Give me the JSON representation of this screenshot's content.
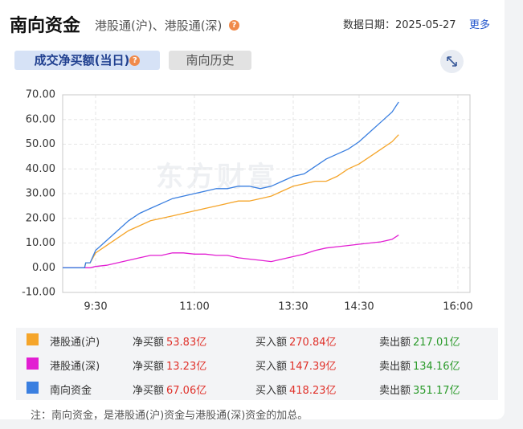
{
  "header": {
    "title": "南向资金",
    "subtitle": "港股通(沪)、港股通(深)",
    "date": "数据日期：2025-05-27",
    "more": "更多"
  },
  "help_icon": "?",
  "tabs": [
    "成交净买额(当日)",
    "南向历史"
  ],
  "chart_data": {
    "type": "line",
    "watermark": "东方财富",
    "x": [
      0,
      10,
      20,
      21,
      25,
      30,
      40,
      50,
      60,
      70,
      80,
      90,
      100,
      110,
      120,
      130,
      140,
      150,
      160,
      170,
      180,
      190,
      200,
      210,
      220,
      230,
      240,
      250,
      260,
      270,
      280,
      290,
      300,
      306
    ],
    "xlim": [
      0,
      371
    ],
    "xticks": [
      {
        "value": 30,
        "label": "9:30"
      },
      {
        "value": 120,
        "label": "11:00"
      },
      {
        "value": 210,
        "label": "13:30"
      },
      {
        "value": 270,
        "label": "14:30"
      },
      {
        "value": 360,
        "label": "16:00"
      }
    ],
    "ylim": [
      -10,
      70
    ],
    "yticks": [
      {
        "value": -10,
        "label": "-10.00"
      },
      {
        "value": 0,
        "label": "0.00"
      },
      {
        "value": 10,
        "label": "10.00"
      },
      {
        "value": 20,
        "label": "20.00"
      },
      {
        "value": 30,
        "label": "30.00"
      },
      {
        "value": 40,
        "label": "40.00"
      },
      {
        "value": 50,
        "label": "50.00"
      },
      {
        "value": 60,
        "label": "60.00"
      },
      {
        "value": 70,
        "label": "70.00"
      }
    ],
    "grid": true,
    "series": [
      {
        "name": "港股通(沪)",
        "color": "#f5a52a",
        "values": [
          0,
          0,
          0,
          2,
          2,
          6,
          9,
          12,
          15,
          17,
          19,
          20,
          21,
          22,
          23,
          24,
          25,
          26,
          27,
          27,
          28,
          29,
          31,
          33,
          34,
          35,
          35,
          37,
          40,
          42,
          45,
          48,
          51,
          53.83
        ]
      },
      {
        "name": "港股通(深)",
        "color": "#e21ed2",
        "values": [
          0,
          0,
          0,
          0,
          0,
          0.5,
          1,
          2,
          3,
          4,
          5,
          5,
          6,
          6,
          5.5,
          5.5,
          5,
          5,
          4,
          3.5,
          3,
          2.5,
          3.5,
          4.5,
          5.5,
          7,
          8,
          8.5,
          9,
          9.5,
          10,
          10.5,
          11.5,
          13.23
        ]
      },
      {
        "name": "南向资金",
        "color": "#3a7fe0",
        "values": [
          0,
          0,
          0,
          2,
          2,
          7,
          11,
          15,
          19,
          22,
          24,
          26,
          28,
          29,
          30,
          31,
          32,
          32,
          33,
          33,
          32,
          33,
          35,
          37,
          38,
          41,
          44,
          46,
          48,
          51,
          55,
          59,
          63,
          67.06
        ]
      }
    ]
  },
  "table": {
    "rows": [
      [
        "净买额",
        "53.83亿",
        "买入额",
        "270.84亿",
        "卖出额",
        "217.01亿"
      ],
      [
        "净买额",
        "13.23亿",
        "买入额",
        "147.39亿",
        "卖出额",
        "134.16亿"
      ],
      [
        "净买额",
        "67.06亿",
        "买入额",
        "418.23亿",
        "卖出额",
        "351.17亿"
      ]
    ]
  },
  "note": "注：南向资金，是港股通(沪)资金与港股通(深)资金的加总。"
}
